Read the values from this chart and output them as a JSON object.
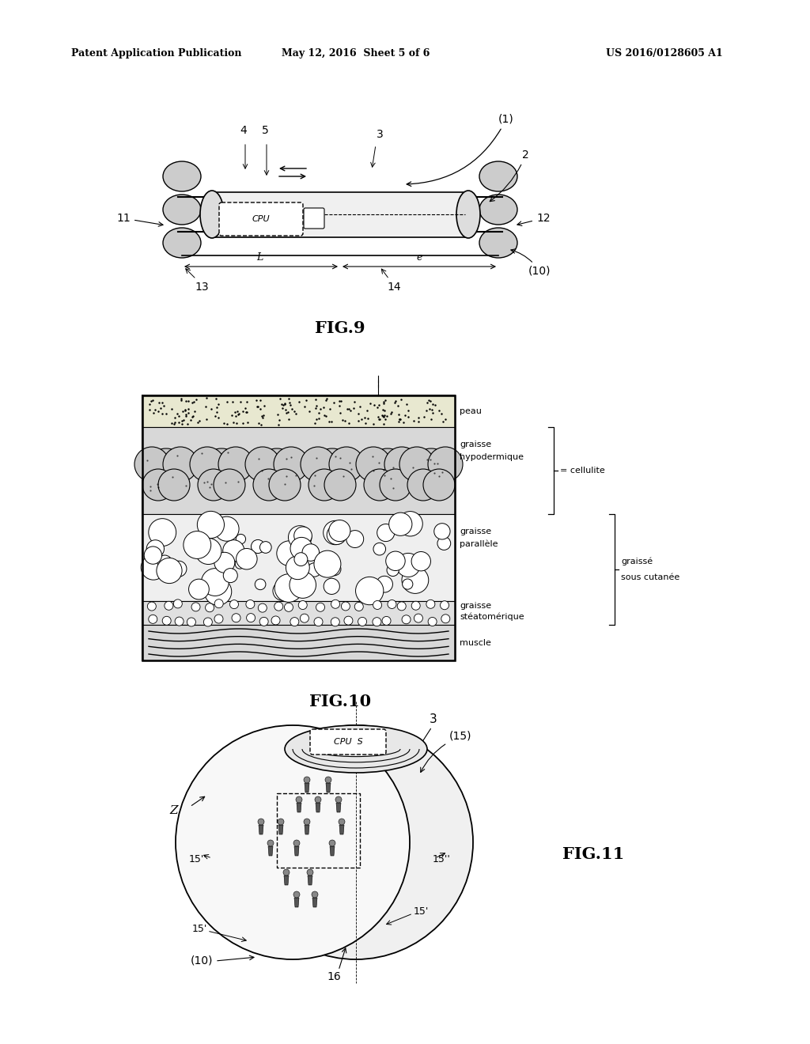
{
  "background_color": "#ffffff",
  "header_text": "Patent Application Publication",
  "header_date": "May 12, 2016  Sheet 5 of 6",
  "header_patent": "US 2016/0128605 A1",
  "fig9_caption": "FIG.9",
  "fig10_caption": "FIG.10",
  "fig11_caption": "FIG.11"
}
